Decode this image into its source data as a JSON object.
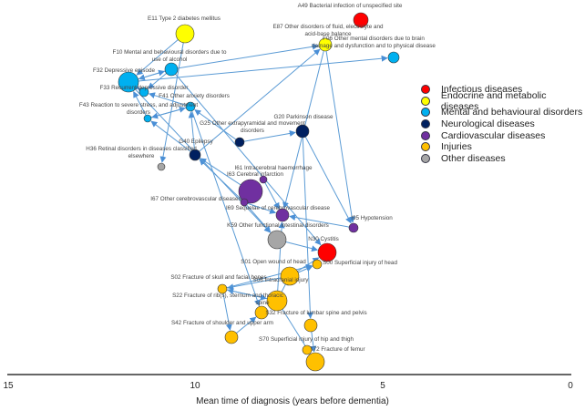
{
  "categories": [
    {
      "id": "infectious",
      "label": "Infectious diseases",
      "color": "#ff0000"
    },
    {
      "id": "endocrine",
      "label": "Endocrine and metabolic diseases",
      "color": "#ffff00"
    },
    {
      "id": "mental",
      "label": "Mental and behavioural disorders",
      "color": "#00b0f0"
    },
    {
      "id": "neuro",
      "label": "Neurological diseases",
      "color": "#002060"
    },
    {
      "id": "cardio",
      "label": "Cardiovascular diseases",
      "color": "#7030a0"
    },
    {
      "id": "injury",
      "label": "Injuries",
      "color": "#ffc000"
    },
    {
      "id": "other",
      "label": "Other diseases",
      "color": "#a6a6a6"
    }
  ],
  "nodes": [
    {
      "id": "A49",
      "label": "A49 Bacterial infection of unspecified site",
      "cat": "infectious"
    },
    {
      "id": "E11",
      "label": "E11 Type 2 diabetes mellitus",
      "cat": "endocrine"
    },
    {
      "id": "E87",
      "label": "E87 Other disorders of fluid, electrolyte and acid-base balance",
      "cat": "endocrine"
    },
    {
      "id": "F06",
      "label": "F06 Other mental disorders due to brain damage and dysfunction and to physical disease",
      "cat": "mental"
    },
    {
      "id": "F10",
      "label": "F10 Mental and behavioural disorders due to use of alcohol",
      "cat": "mental"
    },
    {
      "id": "F32",
      "label": "F32 Depressive episode",
      "cat": "mental"
    },
    {
      "id": "F33",
      "label": "F33 Recurrent depressive disorder",
      "cat": "mental"
    },
    {
      "id": "F41",
      "label": "F41 Other anxiety disorders",
      "cat": "mental"
    },
    {
      "id": "F43",
      "label": "F43 Reaction to severe stress, and adjustment disorders",
      "cat": "mental"
    },
    {
      "id": "G25",
      "label": "G25 Other extrapyramidal and movement disorders",
      "cat": "neuro"
    },
    {
      "id": "G20",
      "label": "G20 Parkinson disease",
      "cat": "neuro"
    },
    {
      "id": "G40",
      "label": "G40 Epilepsy",
      "cat": "neuro"
    },
    {
      "id": "H36",
      "label": "H36 Retinal disorders in diseases classified elsewhere",
      "cat": "other"
    },
    {
      "id": "I61",
      "label": "I61 Intracerebral haemorrhage",
      "cat": "cardio"
    },
    {
      "id": "I63",
      "label": "I63 Cerebral infarction",
      "cat": "cardio"
    },
    {
      "id": "I67",
      "label": "I67 Other cerebrovascular diseases",
      "cat": "cardio"
    },
    {
      "id": "I69",
      "label": "I69 Sequelae of cerebrovascular disease",
      "cat": "cardio"
    },
    {
      "id": "I95",
      "label": "I95 Hypotension",
      "cat": "cardio"
    },
    {
      "id": "K59",
      "label": "K59 Other functional intestinal disorders",
      "cat": "other"
    },
    {
      "id": "N30",
      "label": "N30 Cystitis",
      "cat": "infectious"
    },
    {
      "id": "S00",
      "label": "S00 Superficial injury of head",
      "cat": "injury"
    },
    {
      "id": "S01",
      "label": "S01 Open wound of head",
      "cat": "injury"
    },
    {
      "id": "S06",
      "label": "S06 Intracranial injury",
      "cat": "injury"
    },
    {
      "id": "S02",
      "label": "S02 Fracture of skull and facial bones",
      "cat": "injury"
    },
    {
      "id": "S22",
      "label": "S22 Fracture of rib(s), sternum and thoracic spine",
      "cat": "injury"
    },
    {
      "id": "S32",
      "label": "S32 Fracture of lumbar spine and pelvis",
      "cat": "injury"
    },
    {
      "id": "S42",
      "label": "S42 Fracture of shoulder and upper arm",
      "cat": "injury"
    },
    {
      "id": "S70",
      "label": "S70 Superficial injury of hip and thigh",
      "cat": "injury"
    },
    {
      "id": "S72",
      "label": "S72 Fracture of femur",
      "cat": "injury"
    }
  ],
  "edges": [
    [
      "E11",
      "F32"
    ],
    [
      "F10",
      "F32"
    ],
    [
      "F10",
      "F33"
    ],
    [
      "F10",
      "E87"
    ],
    [
      "F32",
      "F06"
    ],
    [
      "F32",
      "F10"
    ],
    [
      "F32",
      "F33"
    ],
    [
      "F33",
      "F32"
    ],
    [
      "F41",
      "F33"
    ],
    [
      "F43",
      "F41"
    ],
    [
      "F43",
      "F32"
    ],
    [
      "F41",
      "F43"
    ],
    [
      "G40",
      "F41"
    ],
    [
      "G40",
      "F43"
    ],
    [
      "G25",
      "G20"
    ],
    [
      "G25",
      "F41"
    ],
    [
      "G40",
      "E87"
    ],
    [
      "E11",
      "H36"
    ],
    [
      "F10",
      "N30"
    ],
    [
      "I63",
      "G40"
    ],
    [
      "I67",
      "G40"
    ],
    [
      "I67",
      "I69"
    ],
    [
      "I61",
      "I69"
    ],
    [
      "I95",
      "I69"
    ],
    [
      "G20",
      "I95"
    ],
    [
      "E87",
      "I69"
    ],
    [
      "E87",
      "I95"
    ],
    [
      "F32",
      "K59"
    ],
    [
      "I67",
      "K59"
    ],
    [
      "K59",
      "N30"
    ],
    [
      "S01",
      "S00"
    ],
    [
      "S06",
      "N30"
    ],
    [
      "S22",
      "S02"
    ],
    [
      "S02",
      "S22"
    ],
    [
      "S06",
      "S02"
    ],
    [
      "S22",
      "S06"
    ],
    [
      "S22",
      "I69"
    ],
    [
      "S02",
      "S42"
    ],
    [
      "S42",
      "S32"
    ],
    [
      "S22",
      "S72"
    ],
    [
      "G20",
      "S70"
    ],
    [
      "S70",
      "S72"
    ],
    [
      "F41",
      "S32"
    ],
    [
      "S02",
      "S00"
    ]
  ],
  "axis": {
    "ticks": [
      "15",
      "10",
      "5",
      "0"
    ],
    "label": "Mean time of diagnosis (years before dementia)"
  }
}
